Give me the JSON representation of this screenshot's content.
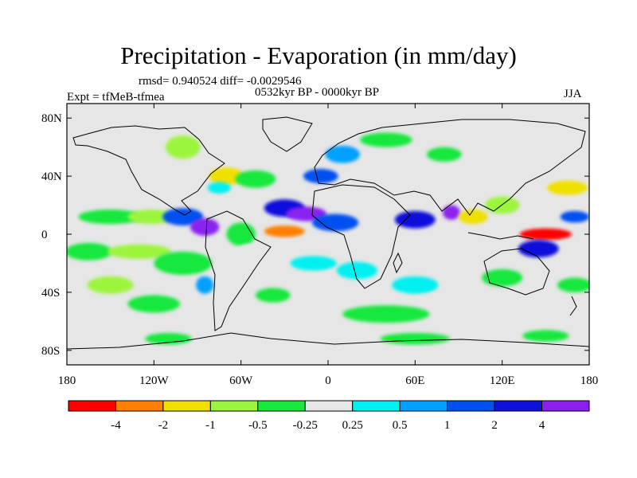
{
  "header": {
    "title": "Precipitation - Evaporation (in mm/day)",
    "stats": "rmsd= 0.940524  diff= -0.0029546",
    "period": "0532kyr BP - 0000kyr BP",
    "experiment": "Expt = tfMeB-tfmea",
    "season": "JJA"
  },
  "chart_data": {
    "type": "heatmap",
    "title": "Precipitation - Evaporation (in mm/day)",
    "xlabel": "",
    "ylabel": "",
    "xlim": [
      -180,
      180
    ],
    "ylim": [
      -90,
      90
    ],
    "x_ticks": [
      {
        "value": -180,
        "label": "180"
      },
      {
        "value": -120,
        "label": "120W"
      },
      {
        "value": -60,
        "label": "60W"
      },
      {
        "value": 0,
        "label": "0"
      },
      {
        "value": 60,
        "label": "60E"
      },
      {
        "value": 120,
        "label": "120E"
      },
      {
        "value": 180,
        "label": "180"
      }
    ],
    "y_ticks": [
      {
        "value": 80,
        "label": "80N"
      },
      {
        "value": 40,
        "label": "40N"
      },
      {
        "value": 0,
        "label": "0"
      },
      {
        "value": -40,
        "label": "40S"
      },
      {
        "value": -80,
        "label": "80S"
      }
    ],
    "colorbar": {
      "boundaries": [
        "-4",
        "-2",
        "-1",
        "-0.5",
        "-0.25",
        "0.25",
        "0.5",
        "1",
        "2",
        "4"
      ],
      "colors": [
        "#ff0000",
        "#ff8000",
        "#f0e000",
        "#9cf53c",
        "#16e83c",
        "#e6e6e6",
        "#00f0f0",
        "#00a0ff",
        "#0050f0",
        "#1010dc",
        "#8a20f0"
      ]
    },
    "background_color": "#e6e6e6",
    "regions": [
      {
        "lon": -150,
        "lat": 12,
        "level": 4,
        "dlon": 22,
        "dlat": 5
      },
      {
        "lon": -122,
        "lat": 12,
        "level": 3,
        "dlon": 16,
        "dlat": 5
      },
      {
        "lon": -100,
        "lat": 12,
        "level": 8,
        "dlon": 14,
        "dlat": 6
      },
      {
        "lon": -85,
        "lat": 5,
        "level": 10,
        "dlon": 10,
        "dlat": 6
      },
      {
        "lon": -165,
        "lat": -12,
        "level": 4,
        "dlon": 16,
        "dlat": 6
      },
      {
        "lon": -130,
        "lat": -12,
        "level": 3,
        "dlon": 22,
        "dlat": 5
      },
      {
        "lon": -100,
        "lat": -20,
        "level": 4,
        "dlon": 20,
        "dlat": 8
      },
      {
        "lon": -150,
        "lat": -35,
        "level": 3,
        "dlon": 16,
        "dlat": 6
      },
      {
        "lon": -120,
        "lat": -48,
        "level": 4,
        "dlon": 18,
        "dlat": 6
      },
      {
        "lon": -85,
        "lat": -35,
        "level": 7,
        "dlon": 6,
        "dlat": 6
      },
      {
        "lon": -100,
        "lat": 60,
        "level": 3,
        "dlon": 12,
        "dlat": 8
      },
      {
        "lon": -70,
        "lat": 40,
        "level": 2,
        "dlon": 12,
        "dlat": 6
      },
      {
        "lon": -75,
        "lat": 32,
        "level": 6,
        "dlon": 8,
        "dlat": 4
      },
      {
        "lon": -50,
        "lat": 38,
        "level": 4,
        "dlon": 14,
        "dlat": 6
      },
      {
        "lon": -30,
        "lat": 18,
        "level": 9,
        "dlon": 14,
        "dlat": 6
      },
      {
        "lon": -15,
        "lat": 14,
        "level": 10,
        "dlon": 14,
        "dlat": 5
      },
      {
        "lon": -30,
        "lat": 2,
        "level": 1,
        "dlon": 14,
        "dlat": 4
      },
      {
        "lon": -60,
        "lat": 0,
        "level": 4,
        "dlon": 10,
        "dlat": 8
      },
      {
        "lon": -55,
        "lat": -15,
        "level": 5,
        "dlon": 10,
        "dlat": 8
      },
      {
        "lon": -10,
        "lat": -20,
        "level": 6,
        "dlon": 16,
        "dlat": 5
      },
      {
        "lon": 20,
        "lat": -25,
        "level": 6,
        "dlon": 14,
        "dlat": 6
      },
      {
        "lon": 40,
        "lat": -55,
        "level": 4,
        "dlon": 30,
        "dlat": 6
      },
      {
        "lon": 5,
        "lat": 8,
        "level": 8,
        "dlon": 16,
        "dlat": 6
      },
      {
        "lon": -5,
        "lat": 40,
        "level": 8,
        "dlon": 12,
        "dlat": 5
      },
      {
        "lon": 10,
        "lat": 55,
        "level": 7,
        "dlon": 12,
        "dlat": 6
      },
      {
        "lon": 40,
        "lat": 65,
        "level": 4,
        "dlon": 18,
        "dlat": 5
      },
      {
        "lon": 80,
        "lat": 55,
        "level": 4,
        "dlon": 12,
        "dlat": 5
      },
      {
        "lon": 60,
        "lat": 10,
        "level": 9,
        "dlon": 14,
        "dlat": 6
      },
      {
        "lon": 85,
        "lat": 15,
        "level": 10,
        "dlon": 6,
        "dlat": 5
      },
      {
        "lon": 100,
        "lat": 12,
        "level": 2,
        "dlon": 10,
        "dlat": 5
      },
      {
        "lon": 120,
        "lat": 20,
        "level": 3,
        "dlon": 12,
        "dlat": 6
      },
      {
        "lon": 150,
        "lat": 0,
        "level": 0,
        "dlon": 18,
        "dlat": 4
      },
      {
        "lon": 145,
        "lat": -10,
        "level": 9,
        "dlon": 14,
        "dlat": 6
      },
      {
        "lon": 165,
        "lat": 32,
        "level": 2,
        "dlon": 14,
        "dlat": 5
      },
      {
        "lon": 170,
        "lat": 12,
        "level": 8,
        "dlon": 10,
        "dlat": 4
      },
      {
        "lon": 60,
        "lat": -35,
        "level": 6,
        "dlon": 16,
        "dlat": 6
      },
      {
        "lon": 120,
        "lat": -30,
        "level": 4,
        "dlon": 14,
        "dlat": 6
      },
      {
        "lon": 170,
        "lat": -35,
        "level": 4,
        "dlon": 12,
        "dlat": 5
      },
      {
        "lon": -110,
        "lat": -72,
        "level": 4,
        "dlon": 16,
        "dlat": 4
      },
      {
        "lon": 60,
        "lat": -72,
        "level": 4,
        "dlon": 24,
        "dlat": 4
      },
      {
        "lon": 150,
        "lat": -70,
        "level": 4,
        "dlon": 16,
        "dlat": 4
      },
      {
        "lon": -38,
        "lat": -42,
        "level": 4,
        "dlon": 12,
        "dlat": 5
      }
    ]
  }
}
